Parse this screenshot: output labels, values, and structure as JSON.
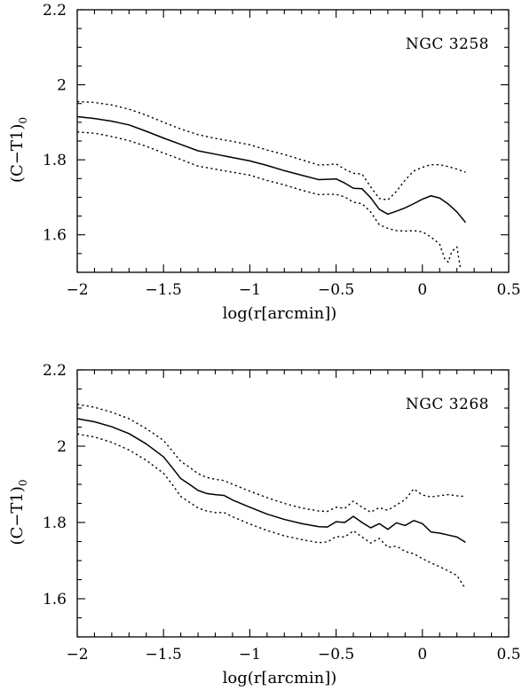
{
  "chart_data": [
    {
      "type": "line",
      "title": "",
      "annotation": "NGC 3258",
      "xlabel": "log(r[arcmin])",
      "ylabel": "(C−T1)",
      "ylabel_subscript": "0",
      "xlim": [
        -2,
        0.5
      ],
      "ylim": [
        1.5,
        2.2
      ],
      "xticks": [
        -2,
        -1.5,
        -1,
        -0.5,
        0,
        0.5
      ],
      "xtick_labels": [
        "−2",
        "−1.5",
        "−1",
        "−0.5",
        "0",
        "0.5"
      ],
      "yticks": [
        1.6,
        1.8,
        2,
        2.2
      ],
      "ytick_labels": [
        "1.6",
        "1.8",
        "2",
        "2.2"
      ],
      "grid": false,
      "series": [
        {
          "style": "solid",
          "x": [
            -2.0,
            -1.9,
            -1.8,
            -1.7,
            -1.6,
            -1.5,
            -1.4,
            -1.3,
            -1.2,
            -1.1,
            -1.0,
            -0.9,
            -0.8,
            -0.7,
            -0.6,
            -0.55,
            -0.5,
            -0.45,
            -0.4,
            -0.35,
            -0.3,
            -0.25,
            -0.2,
            -0.15,
            -0.1,
            -0.05,
            0.0,
            0.05,
            0.1,
            0.15,
            0.2,
            0.25
          ],
          "y": [
            1.915,
            1.91,
            1.903,
            1.893,
            1.876,
            1.858,
            1.841,
            1.824,
            1.815,
            1.806,
            1.797,
            1.785,
            1.771,
            1.759,
            1.747,
            1.748,
            1.749,
            1.738,
            1.724,
            1.723,
            1.699,
            1.668,
            1.655,
            1.663,
            1.672,
            1.683,
            1.695,
            1.704,
            1.698,
            1.682,
            1.661,
            1.633
          ]
        },
        {
          "style": "dotted",
          "x": [
            -2.0,
            -1.9,
            -1.8,
            -1.7,
            -1.6,
            -1.5,
            -1.4,
            -1.3,
            -1.2,
            -1.1,
            -1.0,
            -0.9,
            -0.8,
            -0.7,
            -0.6,
            -0.55,
            -0.5,
            -0.45,
            -0.4,
            -0.35,
            -0.3,
            -0.25,
            -0.2,
            -0.15,
            -0.1,
            -0.05,
            0.0,
            0.05,
            0.1,
            0.15,
            0.2,
            0.25
          ],
          "y": [
            1.955,
            1.953,
            1.946,
            1.935,
            1.919,
            1.9,
            1.882,
            1.867,
            1.857,
            1.849,
            1.84,
            1.826,
            1.814,
            1.8,
            1.786,
            1.787,
            1.789,
            1.775,
            1.764,
            1.762,
            1.728,
            1.697,
            1.693,
            1.716,
            1.746,
            1.77,
            1.78,
            1.787,
            1.787,
            1.782,
            1.775,
            1.767
          ]
        },
        {
          "style": "dotted",
          "x": [
            -2.0,
            -1.9,
            -1.8,
            -1.7,
            -1.6,
            -1.5,
            -1.4,
            -1.3,
            -1.2,
            -1.1,
            -1.0,
            -0.9,
            -0.8,
            -0.7,
            -0.6,
            -0.55,
            -0.5,
            -0.45,
            -0.4,
            -0.35,
            -0.3,
            -0.25,
            -0.2,
            -0.15,
            -0.1,
            -0.05,
            0.0,
            0.05,
            0.1,
            0.13,
            0.15,
            0.17,
            0.2,
            0.21,
            0.22
          ],
          "y": [
            1.874,
            1.871,
            1.862,
            1.851,
            1.836,
            1.818,
            1.801,
            1.783,
            1.775,
            1.767,
            1.759,
            1.745,
            1.733,
            1.719,
            1.707,
            1.708,
            1.708,
            1.701,
            1.687,
            1.683,
            1.661,
            1.627,
            1.617,
            1.611,
            1.61,
            1.611,
            1.608,
            1.594,
            1.575,
            1.535,
            1.527,
            1.555,
            1.568,
            1.54,
            1.512
          ]
        }
      ]
    },
    {
      "type": "line",
      "title": "",
      "annotation": "NGC 3268",
      "xlabel": "log(r[arcmin])",
      "ylabel": "(C−T1)",
      "ylabel_subscript": "0",
      "xlim": [
        -2,
        0.5
      ],
      "ylim": [
        1.5,
        2.2
      ],
      "xticks": [
        -2,
        -1.5,
        -1,
        -0.5,
        0,
        0.5
      ],
      "xtick_labels": [
        "−2",
        "−1.5",
        "−1",
        "−0.5",
        "0",
        "0.5"
      ],
      "yticks": [
        1.6,
        1.8,
        2,
        2.2
      ],
      "ytick_labels": [
        "1.6",
        "1.8",
        "2",
        "2.2"
      ],
      "grid": false,
      "series": [
        {
          "style": "solid",
          "x": [
            -2.0,
            -1.9,
            -1.8,
            -1.7,
            -1.6,
            -1.5,
            -1.45,
            -1.4,
            -1.35,
            -1.3,
            -1.25,
            -1.2,
            -1.15,
            -1.1,
            -1.0,
            -0.9,
            -0.8,
            -0.7,
            -0.6,
            -0.55,
            -0.5,
            -0.45,
            -0.4,
            -0.35,
            -0.3,
            -0.25,
            -0.2,
            -0.15,
            -0.1,
            -0.05,
            0.0,
            0.05,
            0.1,
            0.15,
            0.2,
            0.25
          ],
          "y": [
            2.072,
            2.064,
            2.051,
            2.033,
            2.006,
            1.972,
            1.944,
            1.915,
            1.9,
            1.884,
            1.876,
            1.873,
            1.871,
            1.859,
            1.84,
            1.822,
            1.808,
            1.797,
            1.789,
            1.788,
            1.802,
            1.8,
            1.816,
            1.8,
            1.786,
            1.797,
            1.782,
            1.799,
            1.792,
            1.805,
            1.797,
            1.775,
            1.772,
            1.767,
            1.762,
            1.748
          ]
        },
        {
          "style": "dotted",
          "x": [
            -2.0,
            -1.9,
            -1.8,
            -1.7,
            -1.6,
            -1.5,
            -1.45,
            -1.4,
            -1.35,
            -1.3,
            -1.25,
            -1.2,
            -1.15,
            -1.1,
            -1.0,
            -0.9,
            -0.8,
            -0.7,
            -0.6,
            -0.55,
            -0.5,
            -0.45,
            -0.4,
            -0.35,
            -0.3,
            -0.25,
            -0.2,
            -0.15,
            -0.1,
            -0.05,
            0.0,
            0.05,
            0.1,
            0.15,
            0.2,
            0.25
          ],
          "y": [
            2.11,
            2.102,
            2.089,
            2.072,
            2.046,
            2.015,
            1.988,
            1.96,
            1.945,
            1.928,
            1.918,
            1.913,
            1.91,
            1.9,
            1.882,
            1.865,
            1.85,
            1.838,
            1.83,
            1.829,
            1.84,
            1.837,
            1.856,
            1.84,
            1.827,
            1.839,
            1.832,
            1.846,
            1.86,
            1.888,
            1.872,
            1.867,
            1.87,
            1.873,
            1.87,
            1.868
          ]
        },
        {
          "style": "dotted",
          "x": [
            -2.0,
            -1.9,
            -1.8,
            -1.7,
            -1.6,
            -1.5,
            -1.45,
            -1.4,
            -1.35,
            -1.3,
            -1.25,
            -1.2,
            -1.15,
            -1.1,
            -1.0,
            -0.9,
            -0.8,
            -0.7,
            -0.6,
            -0.55,
            -0.5,
            -0.45,
            -0.4,
            -0.35,
            -0.3,
            -0.25,
            -0.2,
            -0.15,
            -0.1,
            -0.05,
            0.0,
            0.05,
            0.1,
            0.15,
            0.2,
            0.25
          ],
          "y": [
            2.032,
            2.024,
            2.01,
            1.99,
            1.963,
            1.929,
            1.9,
            1.868,
            1.853,
            1.838,
            1.83,
            1.826,
            1.826,
            1.815,
            1.796,
            1.779,
            1.765,
            1.755,
            1.747,
            1.749,
            1.763,
            1.762,
            1.778,
            1.762,
            1.746,
            1.758,
            1.735,
            1.738,
            1.724,
            1.718,
            1.705,
            1.694,
            1.684,
            1.673,
            1.661,
            1.626
          ]
        }
      ]
    }
  ]
}
